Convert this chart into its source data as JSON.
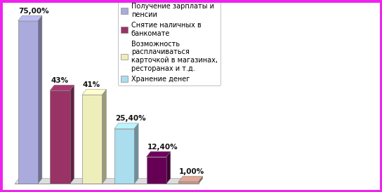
{
  "values": [
    75.0,
    43.0,
    41.0,
    25.4,
    12.4,
    1.0
  ],
  "labels": [
    "75,00%",
    "43%",
    "41%",
    "25,40%",
    "12,40%",
    "1,00%"
  ],
  "bar_colors": [
    "#aaaadd",
    "#993366",
    "#eeeebb",
    "#aaddee",
    "#660055",
    "#cc9988"
  ],
  "legend_labels": [
    "Получение зарплаты и\nпенсии",
    "Снятие наличных в\nбанкомате",
    "Возможность\nрасплачиваться\nкарточкой в магазинах,\nресторанах и т.д.",
    "Хранение денег"
  ],
  "legend_colors": [
    "#aaaadd",
    "#993366",
    "#eeeebb",
    "#aaddee"
  ],
  "background_color": "#ffffff",
  "border_color": "#ee22ee",
  "ylim": [
    0,
    82
  ],
  "bar_fontsize": 7.5,
  "legend_fontsize": 7.0
}
